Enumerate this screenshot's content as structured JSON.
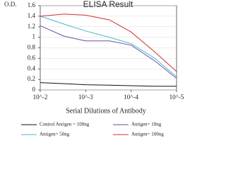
{
  "chart_data": {
    "type": "line",
    "title": "ELISA Result",
    "y_label": "O.D.",
    "x_label": "Serial Dilutions of Antibody",
    "xscale": "log",
    "grid": true,
    "x": [
      0.01,
      0.003,
      0.001,
      0.0003,
      0.0001,
      3e-05,
      1e-05
    ],
    "xlim": [
      0.01,
      1e-05
    ],
    "xticks": [
      {
        "value": 0.01,
        "label": "10^-2"
      },
      {
        "value": 0.001,
        "label": "10^-3"
      },
      {
        "value": 0.0001,
        "label": "10^-4"
      },
      {
        "value": 1e-05,
        "label": "10^-5"
      }
    ],
    "ylim": [
      0,
      1.6
    ],
    "yticks": [
      0,
      0.2,
      0.4,
      0.6,
      0.8,
      1,
      1.2,
      1.4,
      1.6
    ],
    "series": [
      {
        "name": "Control Antigen = 100ng",
        "color": "#111111",
        "values": [
          0.14,
          0.12,
          0.1,
          0.09,
          0.08,
          0.07,
          0.07
        ]
      },
      {
        "name": "Antigen= 10ng",
        "color": "#6b4fa0",
        "values": [
          1.22,
          1.02,
          0.93,
          0.93,
          0.85,
          0.55,
          0.22
        ]
      },
      {
        "name": "Antigen= 50ng",
        "color": "#4fb3d1",
        "values": [
          1.4,
          1.25,
          1.12,
          1.0,
          0.88,
          0.6,
          0.25
        ]
      },
      {
        "name": "Antigen= 100ng",
        "color": "#d0312d",
        "values": [
          1.4,
          1.44,
          1.42,
          1.33,
          1.1,
          0.72,
          0.35
        ]
      }
    ]
  }
}
